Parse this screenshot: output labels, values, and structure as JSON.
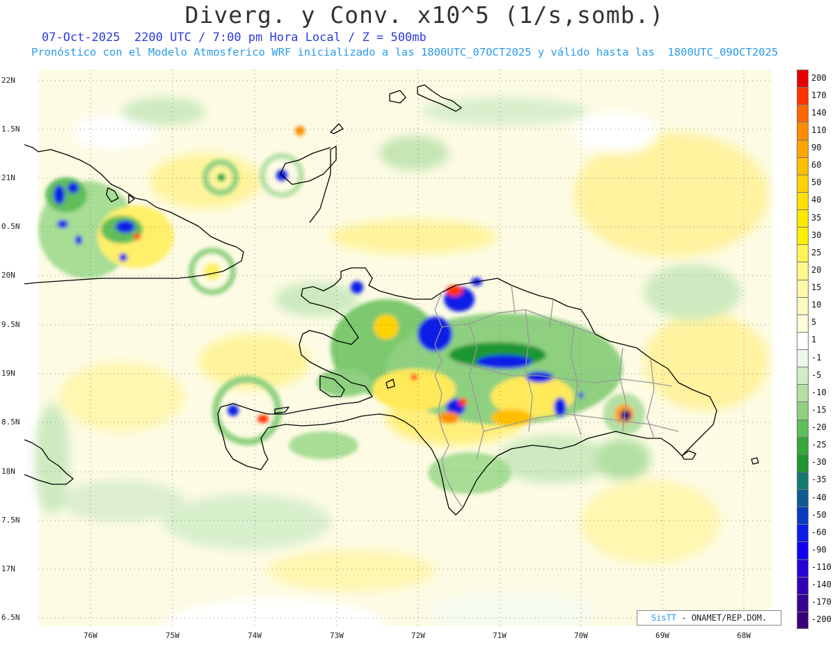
{
  "header": {
    "title": "Diverg. y Conv. x10^5 (1/s,somb.)",
    "subtitle_1": "07-Oct-2025  2200 UTC / 7:00 pm Hora Local / Z = 500mb",
    "subtitle_2": "Pronóstico con el Modelo Atmosferico WRF inicializado a las 1800UTC_07OCT2025 y válido hasta las  1800UTC_09OCT2025"
  },
  "map": {
    "lat_labels": [
      "22N",
      "1.5N",
      "21N",
      "0.5N",
      "20N",
      "9.5N",
      "19N",
      "8.5N",
      "18N",
      "7.5N",
      "17N",
      "6.5N"
    ],
    "lon_labels": [
      "76W",
      "75W",
      "74W",
      "73W",
      "72W",
      "71W",
      "70W",
      "69W",
      "68W"
    ]
  },
  "colorbar": {
    "labels": [
      "200",
      "170",
      "140",
      "110",
      "90",
      "60",
      "50",
      "40",
      "35",
      "30",
      "25",
      "20",
      "15",
      "10",
      "5",
      "1",
      "-1",
      "-5",
      "-10",
      "-15",
      "-20",
      "-25",
      "-30",
      "-35",
      "-40",
      "-50",
      "-60",
      "-90",
      "-110",
      "-140",
      "-170",
      "-200"
    ],
    "colors": [
      "#e60000",
      "#ff3300",
      "#ff6600",
      "#ff8c00",
      "#ffa500",
      "#ffbe00",
      "#ffd200",
      "#ffe000",
      "#ffe800",
      "#fff000",
      "#fff555",
      "#fff88a",
      "#fffaa8",
      "#fffbc0",
      "#fffcd8",
      "#ffffff",
      "#eef7ea",
      "#d2ecc8",
      "#b4e0a4",
      "#8ed080",
      "#5fbd5a",
      "#35a838",
      "#1f9630",
      "#147a6e",
      "#0f5a90",
      "#0a3cc0",
      "#0a1ee6",
      "#1400f0",
      "#2800d8",
      "#3200b8",
      "#360096",
      "#3a0078"
    ]
  },
  "footer": {
    "credit_brand": "SisTT",
    "credit_text": " - ONAMET/REP.DOM."
  }
}
